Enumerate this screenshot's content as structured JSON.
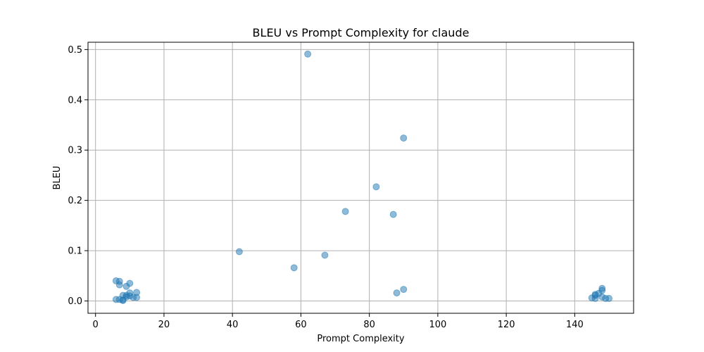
{
  "chart_data": {
    "type": "scatter",
    "title": "BLEU vs Prompt Complexity for claude",
    "xlabel": "Prompt Complexity",
    "ylabel": "BLEU",
    "xlim": [
      -2.2,
      157.2
    ],
    "ylim": [
      -0.0245,
      0.5145
    ],
    "x_ticks": [
      0,
      20,
      40,
      60,
      80,
      100,
      120,
      140
    ],
    "y_ticks": [
      0.0,
      0.1,
      0.2,
      0.3,
      0.4,
      0.5
    ],
    "x_tick_labels": [
      "0",
      "20",
      "40",
      "60",
      "80",
      "100",
      "120",
      "140"
    ],
    "y_tick_labels": [
      "0.0",
      "0.1",
      "0.2",
      "0.3",
      "0.4",
      "0.5"
    ],
    "grid": true,
    "marker_color": "#1f77b4",
    "marker_alpha": 0.5,
    "points": [
      {
        "x": 62,
        "y": 0.491
      },
      {
        "x": 90,
        "y": 0.324
      },
      {
        "x": 82,
        "y": 0.227
      },
      {
        "x": 73,
        "y": 0.178
      },
      {
        "x": 87,
        "y": 0.172
      },
      {
        "x": 42,
        "y": 0.098
      },
      {
        "x": 67,
        "y": 0.091
      },
      {
        "x": 58,
        "y": 0.066
      },
      {
        "x": 90,
        "y": 0.023
      },
      {
        "x": 88,
        "y": 0.016
      },
      {
        "x": 6,
        "y": 0.04
      },
      {
        "x": 7,
        "y": 0.039
      },
      {
        "x": 7,
        "y": 0.032
      },
      {
        "x": 10,
        "y": 0.035
      },
      {
        "x": 9,
        "y": 0.029
      },
      {
        "x": 12,
        "y": 0.017
      },
      {
        "x": 10,
        "y": 0.016
      },
      {
        "x": 8,
        "y": 0.011
      },
      {
        "x": 9,
        "y": 0.011
      },
      {
        "x": 9,
        "y": 0.008
      },
      {
        "x": 10,
        "y": 0.01
      },
      {
        "x": 11,
        "y": 0.007
      },
      {
        "x": 12,
        "y": 0.007
      },
      {
        "x": 6,
        "y": 0.003
      },
      {
        "x": 7,
        "y": 0.003
      },
      {
        "x": 8,
        "y": 0.002
      },
      {
        "x": 8,
        "y": 0.001
      },
      {
        "x": 148,
        "y": 0.025
      },
      {
        "x": 148,
        "y": 0.021
      },
      {
        "x": 147,
        "y": 0.015
      },
      {
        "x": 146,
        "y": 0.013
      },
      {
        "x": 146,
        "y": 0.011
      },
      {
        "x": 148,
        "y": 0.008
      },
      {
        "x": 145,
        "y": 0.006
      },
      {
        "x": 146,
        "y": 0.005
      },
      {
        "x": 149,
        "y": 0.005
      },
      {
        "x": 150,
        "y": 0.005
      }
    ]
  }
}
